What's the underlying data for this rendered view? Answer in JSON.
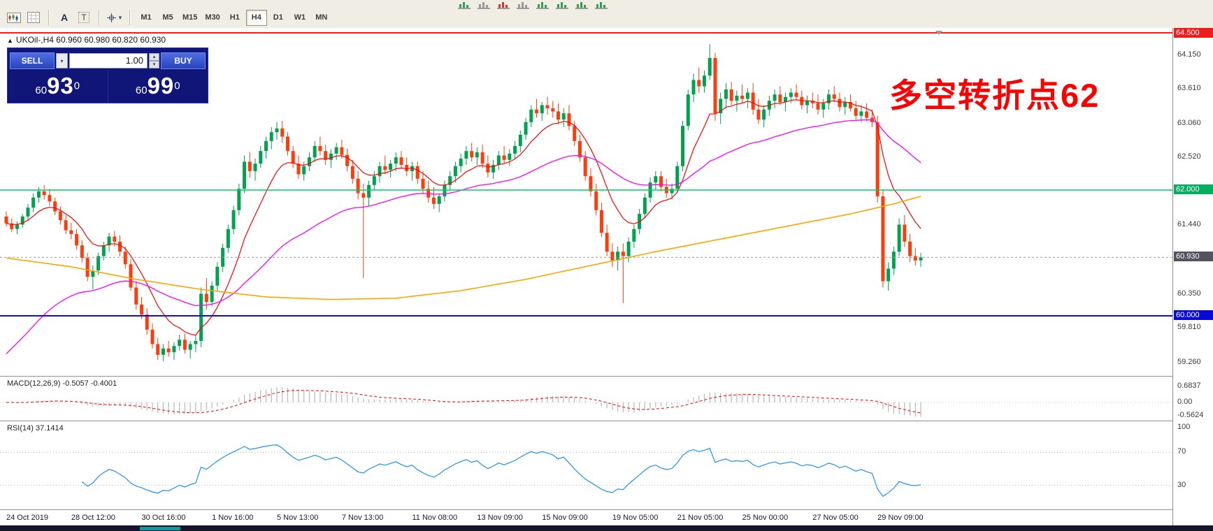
{
  "toolbar": {
    "icon_a_label": "A",
    "icon_t_label": "T",
    "timeframes": [
      {
        "label": "M1",
        "active": false
      },
      {
        "label": "M5",
        "active": false
      },
      {
        "label": "M15",
        "active": false
      },
      {
        "label": "M30",
        "active": false
      },
      {
        "label": "H1",
        "active": false
      },
      {
        "label": "H4",
        "active": true
      },
      {
        "label": "D1",
        "active": false
      },
      {
        "label": "W1",
        "active": false
      },
      {
        "label": "MN",
        "active": false
      }
    ],
    "mini_icons": [
      {
        "name": "chart-area-icon",
        "color": "#2f9e4f"
      },
      {
        "name": "window-tile-icon",
        "color": "#9a9a9a"
      },
      {
        "name": "alert-icon",
        "color": "#d03a2a"
      },
      {
        "name": "window-icon",
        "color": "#9a9a9a"
      },
      {
        "name": "bar-chart-icon",
        "color": "#2f9e4f"
      },
      {
        "name": "candlestick-chart-icon",
        "color": "#2f9e4f"
      },
      {
        "name": "line-chart-icon",
        "color": "#2f9e4f"
      },
      {
        "name": "zigzag-icon",
        "color": "#2f9e4f"
      }
    ]
  },
  "chart": {
    "title_marker": "▲",
    "symbol_title": "UKOil-,H4",
    "ohlc_text": "60.960 60.980 60.820 60.930",
    "annotation": {
      "text": "多空转折点62",
      "color": "#fe0000"
    }
  },
  "trade_panel": {
    "sell_label": "SELL",
    "buy_label": "BUY",
    "volume": "1.00",
    "dropdown_icon": "▾",
    "spin_up_icon": "▴",
    "spin_down_icon": "▾",
    "bid": {
      "prefix": "60",
      "big": "93",
      "pip": "0"
    },
    "ask": {
      "prefix": "60",
      "big": "99",
      "pip": "0"
    }
  },
  "chart_data": {
    "type": "candlestick",
    "symbol": "UKOil-",
    "timeframe": "H4",
    "title": "UKOil-,H4 60.960 60.980 60.820 60.930",
    "y_range": [
      59.05,
      64.5
    ],
    "grid": false,
    "current_price": 60.93,
    "colors": {
      "bull": "#00a24f",
      "bear": "#fe3d0e"
    },
    "ohlc_values": [
      [
        61.58,
        61.66,
        61.42,
        61.47
      ],
      [
        61.47,
        61.55,
        61.33,
        61.38
      ],
      [
        61.38,
        61.5,
        61.3,
        61.45
      ],
      [
        61.45,
        61.62,
        61.4,
        61.58
      ],
      [
        61.58,
        61.78,
        61.52,
        61.72
      ],
      [
        61.72,
        61.95,
        61.65,
        61.88
      ],
      [
        61.88,
        62.05,
        61.8,
        61.98
      ],
      [
        61.98,
        62.08,
        61.85,
        61.92
      ],
      [
        61.92,
        62.02,
        61.75,
        61.82
      ],
      [
        61.82,
        61.88,
        61.6,
        61.66
      ],
      [
        61.66,
        61.74,
        61.45,
        61.52
      ],
      [
        61.52,
        61.6,
        61.3,
        61.36
      ],
      [
        61.36,
        61.48,
        61.22,
        61.3
      ],
      [
        61.3,
        61.38,
        61.05,
        61.12
      ],
      [
        61.12,
        61.2,
        60.85,
        60.92
      ],
      [
        60.92,
        61.0,
        60.55,
        60.62
      ],
      [
        60.62,
        60.8,
        60.42,
        60.72
      ],
      [
        60.72,
        61.0,
        60.65,
        60.95
      ],
      [
        60.95,
        61.18,
        60.88,
        61.12
      ],
      [
        61.12,
        61.32,
        61.02,
        61.26
      ],
      [
        61.26,
        61.35,
        61.1,
        61.18
      ],
      [
        61.18,
        61.28,
        60.95,
        61.02
      ],
      [
        61.02,
        61.1,
        60.75,
        60.82
      ],
      [
        60.82,
        60.9,
        60.4,
        60.45
      ],
      [
        60.45,
        60.55,
        60.1,
        60.18
      ],
      [
        60.18,
        60.3,
        59.95,
        60.02
      ],
      [
        60.02,
        60.12,
        59.7,
        59.78
      ],
      [
        59.78,
        59.88,
        59.48,
        59.55
      ],
      [
        59.55,
        59.65,
        59.3,
        59.38
      ],
      [
        59.38,
        59.55,
        59.28,
        59.48
      ],
      [
        59.48,
        59.6,
        59.35,
        59.42
      ],
      [
        59.42,
        59.58,
        59.3,
        59.52
      ],
      [
        59.52,
        59.7,
        59.45,
        59.62
      ],
      [
        59.62,
        59.72,
        59.4,
        59.46
      ],
      [
        59.46,
        59.6,
        59.32,
        59.55
      ],
      [
        59.55,
        59.68,
        59.42,
        59.6
      ],
      [
        59.6,
        60.45,
        59.5,
        60.35
      ],
      [
        60.35,
        60.6,
        60.1,
        60.22
      ],
      [
        60.22,
        60.55,
        60.15,
        60.48
      ],
      [
        60.48,
        60.85,
        60.4,
        60.78
      ],
      [
        60.78,
        61.15,
        60.7,
        61.08
      ],
      [
        61.08,
        61.45,
        61.0,
        61.38
      ],
      [
        61.38,
        61.75,
        61.3,
        61.68
      ],
      [
        61.68,
        62.1,
        61.6,
        62.02
      ],
      [
        62.02,
        62.55,
        61.95,
        62.45
      ],
      [
        62.45,
        62.6,
        62.2,
        62.3
      ],
      [
        62.3,
        62.5,
        62.15,
        62.42
      ],
      [
        62.42,
        62.7,
        62.35,
        62.62
      ],
      [
        62.62,
        62.85,
        62.5,
        62.78
      ],
      [
        62.78,
        63.0,
        62.65,
        62.92
      ],
      [
        62.92,
        63.08,
        62.8,
        62.98
      ],
      [
        62.98,
        63.1,
        62.75,
        62.85
      ],
      [
        62.85,
        62.92,
        62.55,
        62.62
      ],
      [
        62.62,
        62.7,
        62.35,
        62.42
      ],
      [
        62.42,
        62.55,
        62.18,
        62.25
      ],
      [
        62.25,
        62.45,
        62.15,
        62.38
      ],
      [
        62.38,
        62.6,
        62.3,
        62.52
      ],
      [
        62.52,
        62.78,
        62.45,
        62.7
      ],
      [
        62.7,
        62.85,
        62.55,
        62.62
      ],
      [
        62.62,
        62.72,
        62.4,
        62.48
      ],
      [
        62.48,
        62.65,
        62.35,
        62.58
      ],
      [
        62.58,
        62.75,
        62.48,
        62.68
      ],
      [
        62.68,
        62.8,
        62.5,
        62.56
      ],
      [
        62.56,
        62.66,
        62.3,
        62.38
      ],
      [
        62.38,
        62.48,
        62.1,
        62.18
      ],
      [
        62.18,
        62.3,
        61.85,
        61.95
      ],
      [
        61.95,
        62.1,
        60.6,
        61.88
      ],
      [
        61.88,
        62.15,
        61.75,
        62.08
      ],
      [
        62.08,
        62.3,
        62.0,
        62.22
      ],
      [
        62.22,
        62.45,
        62.12,
        62.38
      ],
      [
        62.38,
        62.55,
        62.25,
        62.32
      ],
      [
        62.32,
        62.48,
        62.2,
        62.42
      ],
      [
        62.42,
        62.6,
        62.3,
        62.52
      ],
      [
        62.52,
        62.62,
        62.35,
        62.4
      ],
      [
        62.4,
        62.52,
        62.22,
        62.3
      ],
      [
        62.3,
        62.45,
        62.15,
        62.38
      ],
      [
        62.38,
        62.45,
        62.1,
        62.18
      ],
      [
        62.18,
        62.3,
        61.95,
        62.02
      ],
      [
        62.02,
        62.15,
        61.8,
        61.88
      ],
      [
        61.88,
        62.05,
        61.7,
        61.78
      ],
      [
        61.78,
        61.95,
        61.65,
        61.9
      ],
      [
        61.9,
        62.15,
        61.82,
        62.08
      ],
      [
        62.08,
        62.3,
        62.0,
        62.22
      ],
      [
        62.22,
        62.45,
        62.12,
        62.38
      ],
      [
        62.38,
        62.58,
        62.28,
        62.5
      ],
      [
        62.5,
        62.7,
        62.4,
        62.62
      ],
      [
        62.62,
        62.75,
        62.45,
        62.52
      ],
      [
        62.52,
        62.68,
        62.4,
        62.6
      ],
      [
        62.6,
        62.72,
        62.35,
        62.42
      ],
      [
        62.42,
        62.55,
        62.2,
        62.28
      ],
      [
        62.28,
        62.48,
        62.18,
        62.4
      ],
      [
        62.4,
        62.62,
        62.32,
        62.55
      ],
      [
        62.55,
        62.7,
        62.42,
        62.48
      ],
      [
        62.48,
        62.65,
        62.38,
        62.58
      ],
      [
        62.58,
        62.78,
        62.5,
        62.7
      ],
      [
        62.7,
        62.95,
        62.6,
        62.88
      ],
      [
        62.88,
        63.15,
        62.8,
        63.08
      ],
      [
        63.08,
        63.35,
        63.0,
        63.28
      ],
      [
        63.28,
        63.45,
        63.15,
        63.22
      ],
      [
        63.22,
        63.4,
        63.1,
        63.35
      ],
      [
        63.35,
        63.48,
        63.2,
        63.3
      ],
      [
        63.3,
        63.42,
        63.15,
        63.25
      ],
      [
        63.25,
        63.38,
        63.05,
        63.12
      ],
      [
        63.12,
        63.3,
        63.0,
        63.22
      ],
      [
        63.22,
        63.35,
        62.95,
        63.02
      ],
      [
        63.02,
        63.1,
        62.7,
        62.78
      ],
      [
        62.78,
        62.88,
        62.45,
        62.52
      ],
      [
        62.52,
        62.62,
        62.15,
        62.22
      ],
      [
        62.22,
        62.35,
        61.9,
        61.98
      ],
      [
        61.98,
        62.1,
        61.6,
        61.68
      ],
      [
        61.68,
        61.8,
        61.25,
        61.32
      ],
      [
        61.32,
        61.45,
        60.95,
        61.02
      ],
      [
        61.02,
        61.15,
        60.78,
        60.88
      ],
      [
        60.88,
        61.1,
        60.72,
        61.02
      ],
      [
        61.02,
        61.15,
        60.2,
        60.95
      ],
      [
        60.95,
        61.25,
        60.85,
        61.18
      ],
      [
        61.18,
        61.45,
        61.08,
        61.38
      ],
      [
        61.38,
        61.7,
        61.3,
        61.62
      ],
      [
        61.62,
        61.95,
        61.55,
        61.88
      ],
      [
        61.88,
        62.2,
        61.8,
        62.12
      ],
      [
        62.12,
        62.3,
        62.0,
        62.22
      ],
      [
        62.22,
        62.3,
        61.98,
        62.05
      ],
      [
        62.05,
        62.18,
        61.88,
        61.95
      ],
      [
        61.95,
        62.1,
        61.85,
        62.02
      ],
      [
        62.02,
        62.45,
        61.95,
        62.38
      ],
      [
        62.38,
        63.1,
        62.3,
        63.02
      ],
      [
        63.02,
        63.6,
        62.95,
        63.52
      ],
      [
        63.52,
        63.85,
        63.4,
        63.75
      ],
      [
        63.75,
        63.95,
        63.55,
        63.65
      ],
      [
        63.65,
        63.9,
        63.55,
        63.82
      ],
      [
        63.82,
        64.32,
        63.75,
        64.1
      ],
      [
        64.1,
        64.18,
        63.1,
        63.22
      ],
      [
        63.22,
        63.55,
        63.05,
        63.45
      ],
      [
        63.45,
        63.7,
        63.3,
        63.6
      ],
      [
        63.6,
        63.72,
        63.35,
        63.42
      ],
      [
        63.42,
        63.58,
        63.25,
        63.5
      ],
      [
        63.5,
        63.68,
        63.38,
        63.45
      ],
      [
        63.45,
        63.62,
        63.3,
        63.55
      ],
      [
        63.55,
        63.7,
        63.2,
        63.28
      ],
      [
        63.28,
        63.45,
        63.05,
        63.12
      ],
      [
        63.12,
        63.35,
        63.0,
        63.28
      ],
      [
        63.28,
        63.5,
        63.18,
        63.42
      ],
      [
        63.42,
        63.6,
        63.3,
        63.52
      ],
      [
        63.52,
        63.65,
        63.35,
        63.4
      ],
      [
        63.4,
        63.55,
        63.25,
        63.48
      ],
      [
        63.48,
        63.62,
        63.38,
        63.55
      ],
      [
        63.55,
        63.68,
        63.42,
        63.48
      ],
      [
        63.48,
        63.58,
        63.28,
        63.35
      ],
      [
        63.35,
        63.5,
        63.22,
        63.42
      ],
      [
        63.42,
        63.55,
        63.3,
        63.38
      ],
      [
        63.38,
        63.52,
        63.2,
        63.28
      ],
      [
        63.28,
        63.45,
        63.15,
        63.38
      ],
      [
        63.38,
        63.6,
        63.28,
        63.52
      ],
      [
        63.52,
        63.65,
        63.4,
        63.45
      ],
      [
        63.45,
        63.55,
        63.25,
        63.32
      ],
      [
        63.32,
        63.48,
        63.2,
        63.4
      ],
      [
        63.4,
        63.52,
        63.25,
        63.3
      ],
      [
        63.3,
        63.42,
        63.12,
        63.18
      ],
      [
        63.18,
        63.35,
        63.08,
        63.25
      ],
      [
        63.25,
        63.38,
        63.1,
        63.15
      ],
      [
        63.15,
        63.28,
        63.0,
        63.08
      ],
      [
        63.08,
        63.18,
        61.8,
        61.9
      ],
      [
        61.9,
        62.0,
        60.45,
        60.55
      ],
      [
        60.55,
        60.85,
        60.4,
        60.75
      ],
      [
        60.75,
        61.1,
        60.65,
        61.02
      ],
      [
        61.02,
        61.55,
        60.95,
        61.45
      ],
      [
        61.45,
        61.6,
        61.1,
        61.18
      ],
      [
        61.18,
        61.3,
        60.85,
        60.95
      ],
      [
        60.95,
        61.08,
        60.8,
        60.88
      ],
      [
        60.88,
        61.0,
        60.78,
        60.93
      ]
    ],
    "x_labels": [
      [
        0,
        "24 Oct 2019"
      ],
      [
        12,
        "28 Oct 12:00"
      ],
      [
        25,
        "30 Oct 16:00"
      ],
      [
        38,
        "1 Nov 16:00"
      ],
      [
        50,
        "5 Nov 13:00"
      ],
      [
        62,
        "7 Nov 13:00"
      ],
      [
        75,
        "11 Nov 08:00"
      ],
      [
        87,
        "13 Nov 09:00"
      ],
      [
        99,
        "15 Nov 09:00"
      ],
      [
        112,
        "19 Nov 05:00"
      ],
      [
        124,
        "21 Nov 05:00"
      ],
      [
        136,
        "25 Nov 00:00"
      ],
      [
        149,
        "27 Nov 05:00"
      ],
      [
        161,
        "29 Nov 09:00"
      ]
    ],
    "y_axis_labels": [
      {
        "label": "64.150",
        "price": 64.15
      },
      {
        "label": "63.610",
        "price": 63.61
      },
      {
        "label": "63.060",
        "price": 63.06
      },
      {
        "label": "62.520",
        "price": 62.52
      },
      {
        "label": "61.440",
        "price": 61.44
      },
      {
        "label": "60.350",
        "price": 60.35
      },
      {
        "label": "59.810",
        "price": 59.81
      },
      {
        "label": "59.260",
        "price": 59.26
      }
    ],
    "y_badges": [
      {
        "label": "64.500",
        "price": 64.5,
        "bg": "#ee1c1c"
      },
      {
        "label": "62.000",
        "price": 62.0,
        "bg": "#00b060"
      },
      {
        "label": "60.930",
        "price": 60.93,
        "bg": "#53535e"
      },
      {
        "label": "60.000",
        "price": 60.0,
        "bg": "#0a0ad6"
      }
    ],
    "hlines": [
      {
        "price": 64.5,
        "color": "#ff1a1a",
        "width": 2
      },
      {
        "price": 62.0,
        "color": "#00cf66",
        "width": 1.5
      },
      {
        "price": 60.0,
        "color": "#0d0de0",
        "width": 2
      }
    ],
    "current_price_line": {
      "price": 60.93,
      "color": "#9a9a9a",
      "dash": "3,3"
    },
    "mas": {
      "fast": {
        "period": 10,
        "color": "#ff0000"
      },
      "mid": {
        "period": 45,
        "seed": 59.3,
        "color": "#ff00ff"
      },
      "slow": {
        "color": "#ffa500",
        "points": [
          [
            0,
            60.92
          ],
          [
            12,
            60.78
          ],
          [
            24,
            60.58
          ],
          [
            36,
            60.42
          ],
          [
            48,
            60.3
          ],
          [
            60,
            60.26
          ],
          [
            72,
            60.28
          ],
          [
            84,
            60.4
          ],
          [
            96,
            60.58
          ],
          [
            108,
            60.8
          ],
          [
            120,
            61.02
          ],
          [
            132,
            61.22
          ],
          [
            144,
            61.42
          ],
          [
            156,
            61.62
          ],
          [
            164,
            61.78
          ],
          [
            169,
            61.9
          ]
        ]
      }
    },
    "indicators": {
      "macd": {
        "name": "MACD(12,26,9)",
        "values_text": "-0.5057 -0.4001",
        "fast": 12,
        "slow": 26,
        "signal": 9,
        "axis_labels": [
          "0.6837",
          "0.00",
          "-0.5624"
        ],
        "histogram_color": "#b9b9b9",
        "signal_color": "#ff0000"
      },
      "rsi": {
        "name": "RSI(14)",
        "value_text": "37.1414",
        "period": 14,
        "color": "#1e90ff",
        "level_labels": [
          "100",
          "70",
          "30"
        ],
        "levels": [
          70,
          30
        ]
      }
    }
  }
}
